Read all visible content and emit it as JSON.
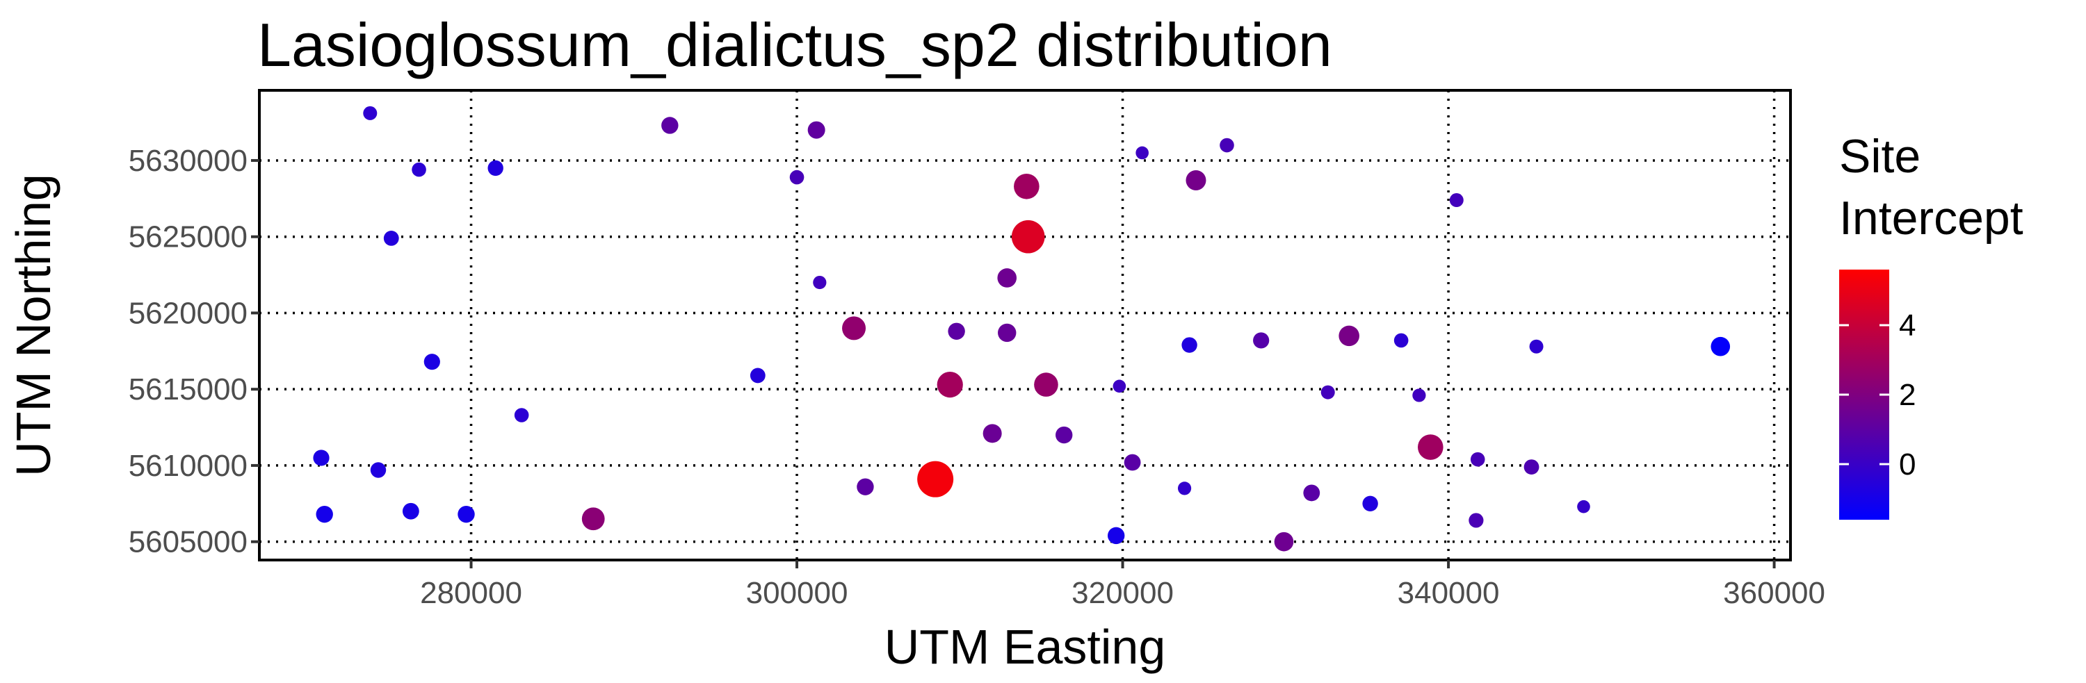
{
  "chart_data": {
    "type": "scatter",
    "title": "Lasioglossum_dialictus_sp2 distribution",
    "xlabel": "UTM Easting",
    "ylabel": "UTM Northing",
    "xlim": [
      267000,
      361000
    ],
    "ylim": [
      5603800,
      5634600
    ],
    "x_ticks": [
      280000,
      300000,
      320000,
      340000,
      360000
    ],
    "y_ticks": [
      5605000,
      5610000,
      5615000,
      5620000,
      5625000,
      5630000
    ],
    "grid": true,
    "legend": {
      "title": [
        "Site",
        "Intercept"
      ],
      "placement": "right",
      "range": [
        -1.6,
        5.6
      ],
      "ticks": [
        0,
        2,
        4
      ],
      "color_low": "#0000ff",
      "color_high": "#ff0000"
    },
    "points": [
      {
        "x": 273800,
        "y": 5633100,
        "v": -0.3
      },
      {
        "x": 276800,
        "y": 5629400,
        "v": -0.4
      },
      {
        "x": 281500,
        "y": 5629500,
        "v": -0.7
      },
      {
        "x": 292200,
        "y": 5632300,
        "v": 1.0
      },
      {
        "x": 301200,
        "y": 5632000,
        "v": 1.1
      },
      {
        "x": 300000,
        "y": 5628900,
        "v": 0.4
      },
      {
        "x": 314100,
        "y": 5628300,
        "v": 2.9
      },
      {
        "x": 321200,
        "y": 5630500,
        "v": 0.1
      },
      {
        "x": 326400,
        "y": 5631000,
        "v": 0.4
      },
      {
        "x": 324500,
        "y": 5628700,
        "v": 1.7
      },
      {
        "x": 340500,
        "y": 5627400,
        "v": 0.3
      },
      {
        "x": 275100,
        "y": 5624900,
        "v": -0.6
      },
      {
        "x": 314200,
        "y": 5625000,
        "v": 4.6
      },
      {
        "x": 301400,
        "y": 5622000,
        "v": 0.2
      },
      {
        "x": 312900,
        "y": 5622300,
        "v": 1.5
      },
      {
        "x": 303500,
        "y": 5619000,
        "v": 2.5
      },
      {
        "x": 309800,
        "y": 5618800,
        "v": 1.0
      },
      {
        "x": 312900,
        "y": 5618700,
        "v": 1.3
      },
      {
        "x": 277600,
        "y": 5616800,
        "v": -0.8
      },
      {
        "x": 297600,
        "y": 5615900,
        "v": -0.6
      },
      {
        "x": 309400,
        "y": 5615300,
        "v": 3.0
      },
      {
        "x": 315300,
        "y": 5615300,
        "v": 2.6
      },
      {
        "x": 319800,
        "y": 5615200,
        "v": 0.1
      },
      {
        "x": 324100,
        "y": 5617900,
        "v": -0.7
      },
      {
        "x": 328500,
        "y": 5618200,
        "v": 0.8
      },
      {
        "x": 333900,
        "y": 5618500,
        "v": 1.8
      },
      {
        "x": 337100,
        "y": 5618200,
        "v": -0.4
      },
      {
        "x": 345400,
        "y": 5617800,
        "v": -0.3
      },
      {
        "x": 356700,
        "y": 5617800,
        "v": -1.5
      },
      {
        "x": 283100,
        "y": 5613300,
        "v": -0.4
      },
      {
        "x": 332600,
        "y": 5614800,
        "v": 0.3
      },
      {
        "x": 338200,
        "y": 5614600,
        "v": 0.2
      },
      {
        "x": 312000,
        "y": 5612100,
        "v": 1.4
      },
      {
        "x": 316400,
        "y": 5612000,
        "v": 1.0
      },
      {
        "x": 270800,
        "y": 5610500,
        "v": -0.8
      },
      {
        "x": 274300,
        "y": 5609700,
        "v": -0.7
      },
      {
        "x": 308500,
        "y": 5609100,
        "v": 5.3
      },
      {
        "x": 304200,
        "y": 5608600,
        "v": 1.0
      },
      {
        "x": 320600,
        "y": 5610200,
        "v": 0.9
      },
      {
        "x": 323800,
        "y": 5608500,
        "v": -0.2
      },
      {
        "x": 331600,
        "y": 5608200,
        "v": 0.9
      },
      {
        "x": 338900,
        "y": 5611200,
        "v": 2.9
      },
      {
        "x": 341800,
        "y": 5610400,
        "v": 0.4
      },
      {
        "x": 345100,
        "y": 5609900,
        "v": 0.6
      },
      {
        "x": 271000,
        "y": 5606800,
        "v": -1.0
      },
      {
        "x": 276300,
        "y": 5607000,
        "v": -0.9
      },
      {
        "x": 279700,
        "y": 5606800,
        "v": -1.0
      },
      {
        "x": 287500,
        "y": 5606500,
        "v": 2.3
      },
      {
        "x": 319600,
        "y": 5605400,
        "v": -1.0
      },
      {
        "x": 329900,
        "y": 5605000,
        "v": 1.5
      },
      {
        "x": 335200,
        "y": 5607500,
        "v": -0.7
      },
      {
        "x": 341700,
        "y": 5606400,
        "v": 0.5
      },
      {
        "x": 348300,
        "y": 5607300,
        "v": -0.1
      }
    ]
  }
}
